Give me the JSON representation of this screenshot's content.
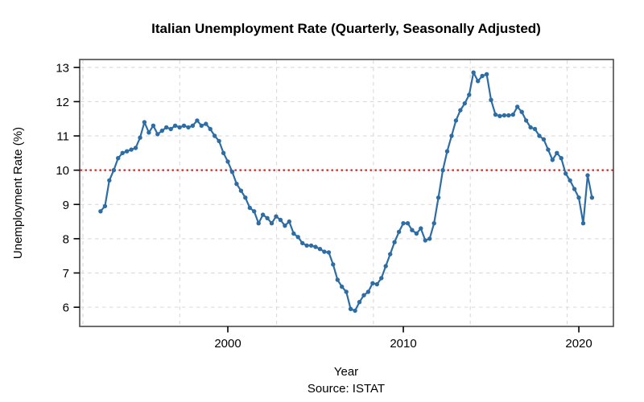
{
  "chart_data": {
    "type": "line",
    "title": "Italian Unemployment Rate (Quarterly, Seasonally Adjusted)",
    "xlabel": "Year",
    "ylabel": "Unemployment Rate (%)",
    "source": "Source: ISTAT",
    "series_name": "unemployment-rate-quarterly-sa",
    "x_start": 1992.75,
    "x_step": 0.25,
    "x_start_label": "1992-Q4",
    "x_end_label": "2020-Q4",
    "values": [
      8.8,
      8.95,
      9.7,
      10.0,
      10.35,
      10.5,
      10.55,
      10.6,
      10.65,
      10.95,
      11.4,
      11.1,
      11.3,
      11.05,
      11.15,
      11.25,
      11.2,
      11.3,
      11.25,
      11.3,
      11.25,
      11.3,
      11.45,
      11.3,
      11.35,
      11.2,
      11.0,
      10.85,
      10.5,
      10.25,
      9.95,
      9.6,
      9.4,
      9.2,
      8.9,
      8.8,
      8.45,
      8.7,
      8.6,
      8.45,
      8.65,
      8.55,
      8.38,
      8.5,
      8.15,
      8.05,
      7.87,
      7.8,
      7.8,
      7.76,
      7.7,
      7.62,
      7.6,
      7.25,
      6.8,
      6.6,
      6.45,
      5.95,
      5.9,
      6.15,
      6.35,
      6.45,
      6.7,
      6.67,
      6.85,
      7.2,
      7.55,
      7.9,
      8.2,
      8.45,
      8.45,
      8.25,
      8.15,
      8.3,
      7.95,
      8.0,
      8.45,
      9.2,
      10.0,
      10.55,
      11.0,
      11.45,
      11.75,
      11.95,
      12.2,
      12.85,
      12.6,
      12.75,
      12.8,
      12.05,
      11.62,
      11.58,
      11.6,
      11.6,
      11.62,
      11.85,
      11.7,
      11.45,
      11.25,
      11.2,
      11.0,
      10.9,
      10.6,
      10.3,
      10.5,
      10.35,
      9.9,
      9.7,
      9.45,
      9.2,
      8.45,
      9.85,
      9.2
    ],
    "reference_line": {
      "y": 10,
      "color": "#e60000",
      "style": "dotted"
    },
    "line_color": "#2e6da4",
    "marker": "circle",
    "grid": true,
    "grid_color": "#d9d9d9",
    "border_color": "#4a4a4a",
    "xticks": [
      2000,
      2010,
      2020
    ],
    "yticks": [
      6,
      7,
      8,
      9,
      10,
      11,
      12,
      13
    ],
    "xlim": [
      1991.56,
      2021.97
    ],
    "ylim": [
      5.44,
      13.23
    ]
  }
}
